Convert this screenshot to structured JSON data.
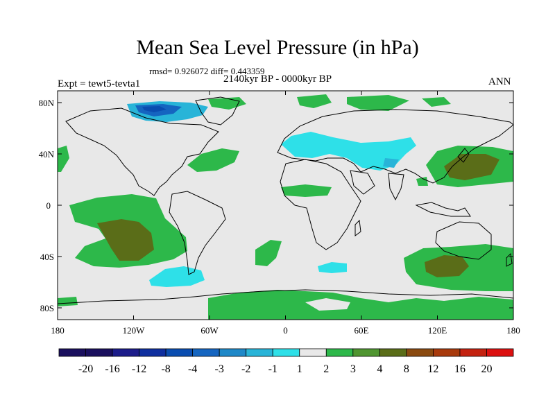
{
  "header": {
    "title": "Mean Sea Level Pressure (in hPa)",
    "stats": "rmsd= 0.926072 diff= 0.443359",
    "period": "2140kyr BP - 0000kyr BP",
    "experiment": "Expt = tewt5-tevta1",
    "season": "ANN"
  },
  "axes": {
    "lat_labels": [
      "80N",
      "40N",
      "0",
      "40S",
      "80S"
    ],
    "lon_labels": [
      "180",
      "120W",
      "60W",
      "0",
      "60E",
      "120E",
      "180"
    ]
  },
  "colorbar": {
    "labels": [
      "-20",
      "-16",
      "-12",
      "-8",
      "-4",
      "-3",
      "-2",
      "-1",
      "1",
      "2",
      "3",
      "4",
      "8",
      "12",
      "16",
      "20"
    ],
    "colors": [
      "#1a0f5e",
      "#1c1c8a",
      "#0f2f9f",
      "#0a4db0",
      "#1565c0",
      "#1e88c8",
      "#28b4d8",
      "#2ee0e8",
      "#e8e8e8",
      "#2db84a",
      "#4f9530",
      "#5a6d18",
      "#8a4a10",
      "#a83a0c",
      "#c42210",
      "#dc1010"
    ]
  },
  "colors": {
    "land_ocean_neutral": "#e8e8e8",
    "coast_line": "#000000"
  }
}
